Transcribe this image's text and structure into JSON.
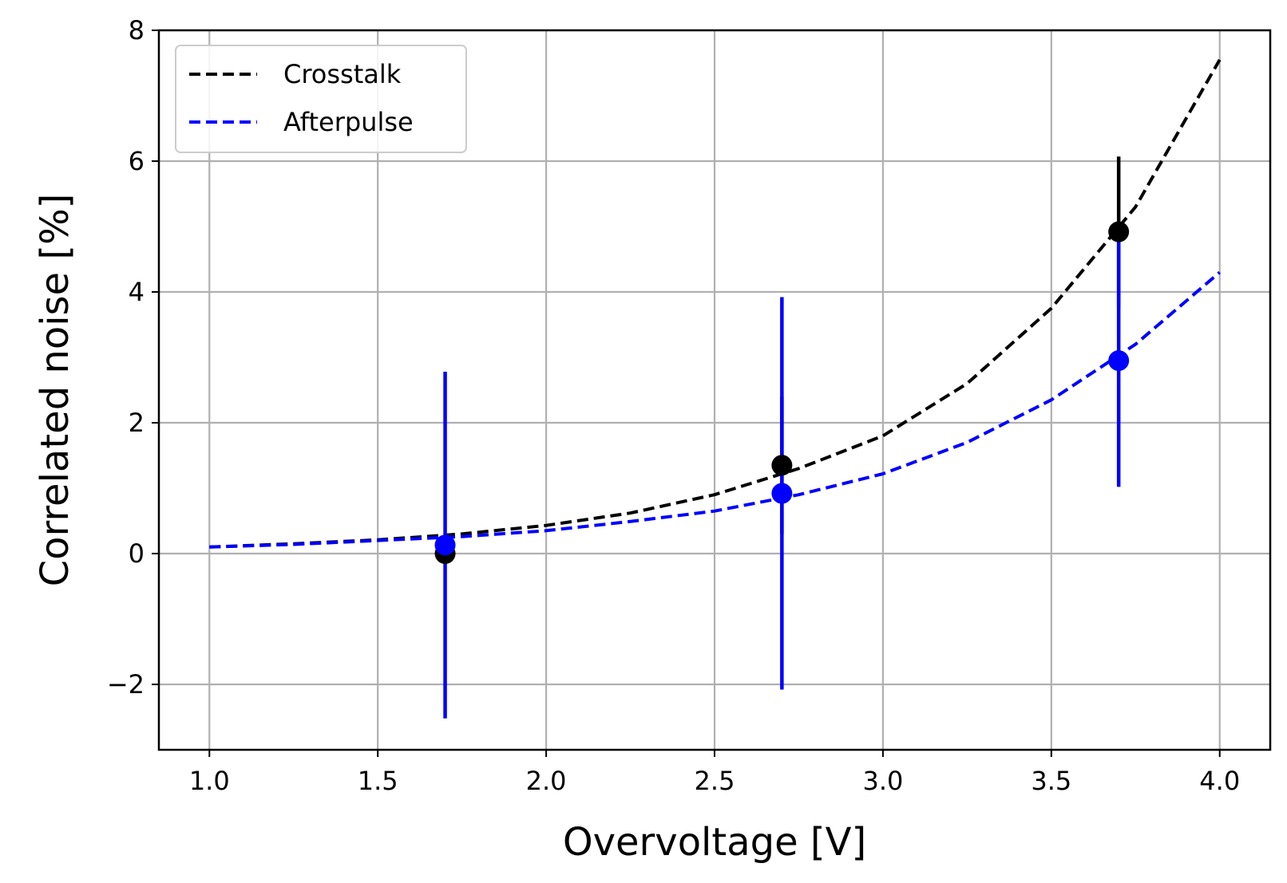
{
  "chart_data": {
    "type": "line",
    "xlabel": "Overvoltage [V]",
    "ylabel": "Correlated noise [%]",
    "xlim": [
      0.85,
      4.15
    ],
    "ylim": [
      -3.0,
      8.0
    ],
    "xticks": [
      1.0,
      1.5,
      2.0,
      2.5,
      3.0,
      3.5,
      4.0
    ],
    "xtick_labels": [
      "1.0",
      "1.5",
      "2.0",
      "2.5",
      "3.0",
      "3.5",
      "4.0"
    ],
    "yticks": [
      -2,
      0,
      2,
      4,
      6,
      8
    ],
    "ytick_labels": [
      "−2",
      "0",
      "2",
      "4",
      "6",
      "8"
    ],
    "grid": true,
    "legend_position": "top-left",
    "series": [
      {
        "name": "Crosstalk",
        "color": "#000000",
        "style": "dashed-fit",
        "curve": {
          "x": [
            1.0,
            1.25,
            1.5,
            1.75,
            2.0,
            2.25,
            2.5,
            2.75,
            3.0,
            3.25,
            3.5,
            3.75,
            4.0
          ],
          "y": [
            0.1,
            0.15,
            0.21,
            0.3,
            0.43,
            0.62,
            0.9,
            1.3,
            1.8,
            2.6,
            3.75,
            5.3,
            7.55
          ]
        },
        "points": [
          {
            "x": 1.7,
            "y": 0.0,
            "yerr": 0.0
          },
          {
            "x": 2.7,
            "y": 1.35,
            "yerr": 1.05
          },
          {
            "x": 3.7,
            "y": 4.92,
            "yerr": 1.15
          }
        ]
      },
      {
        "name": "Afterpulse",
        "color": "#0000ff",
        "style": "dashed-fit",
        "curve": {
          "x": [
            1.0,
            1.25,
            1.5,
            1.75,
            2.0,
            2.25,
            2.5,
            2.75,
            3.0,
            3.25,
            3.5,
            3.75,
            4.0
          ],
          "y": [
            0.1,
            0.14,
            0.2,
            0.26,
            0.35,
            0.49,
            0.65,
            0.9,
            1.22,
            1.7,
            2.35,
            3.2,
            4.3
          ]
        },
        "points": [
          {
            "x": 1.7,
            "y": 0.13,
            "yerr": 2.65
          },
          {
            "x": 2.7,
            "y": 0.92,
            "yerr": 3.0
          },
          {
            "x": 3.7,
            "y": 2.95,
            "yerr": 1.93
          }
        ]
      }
    ]
  }
}
